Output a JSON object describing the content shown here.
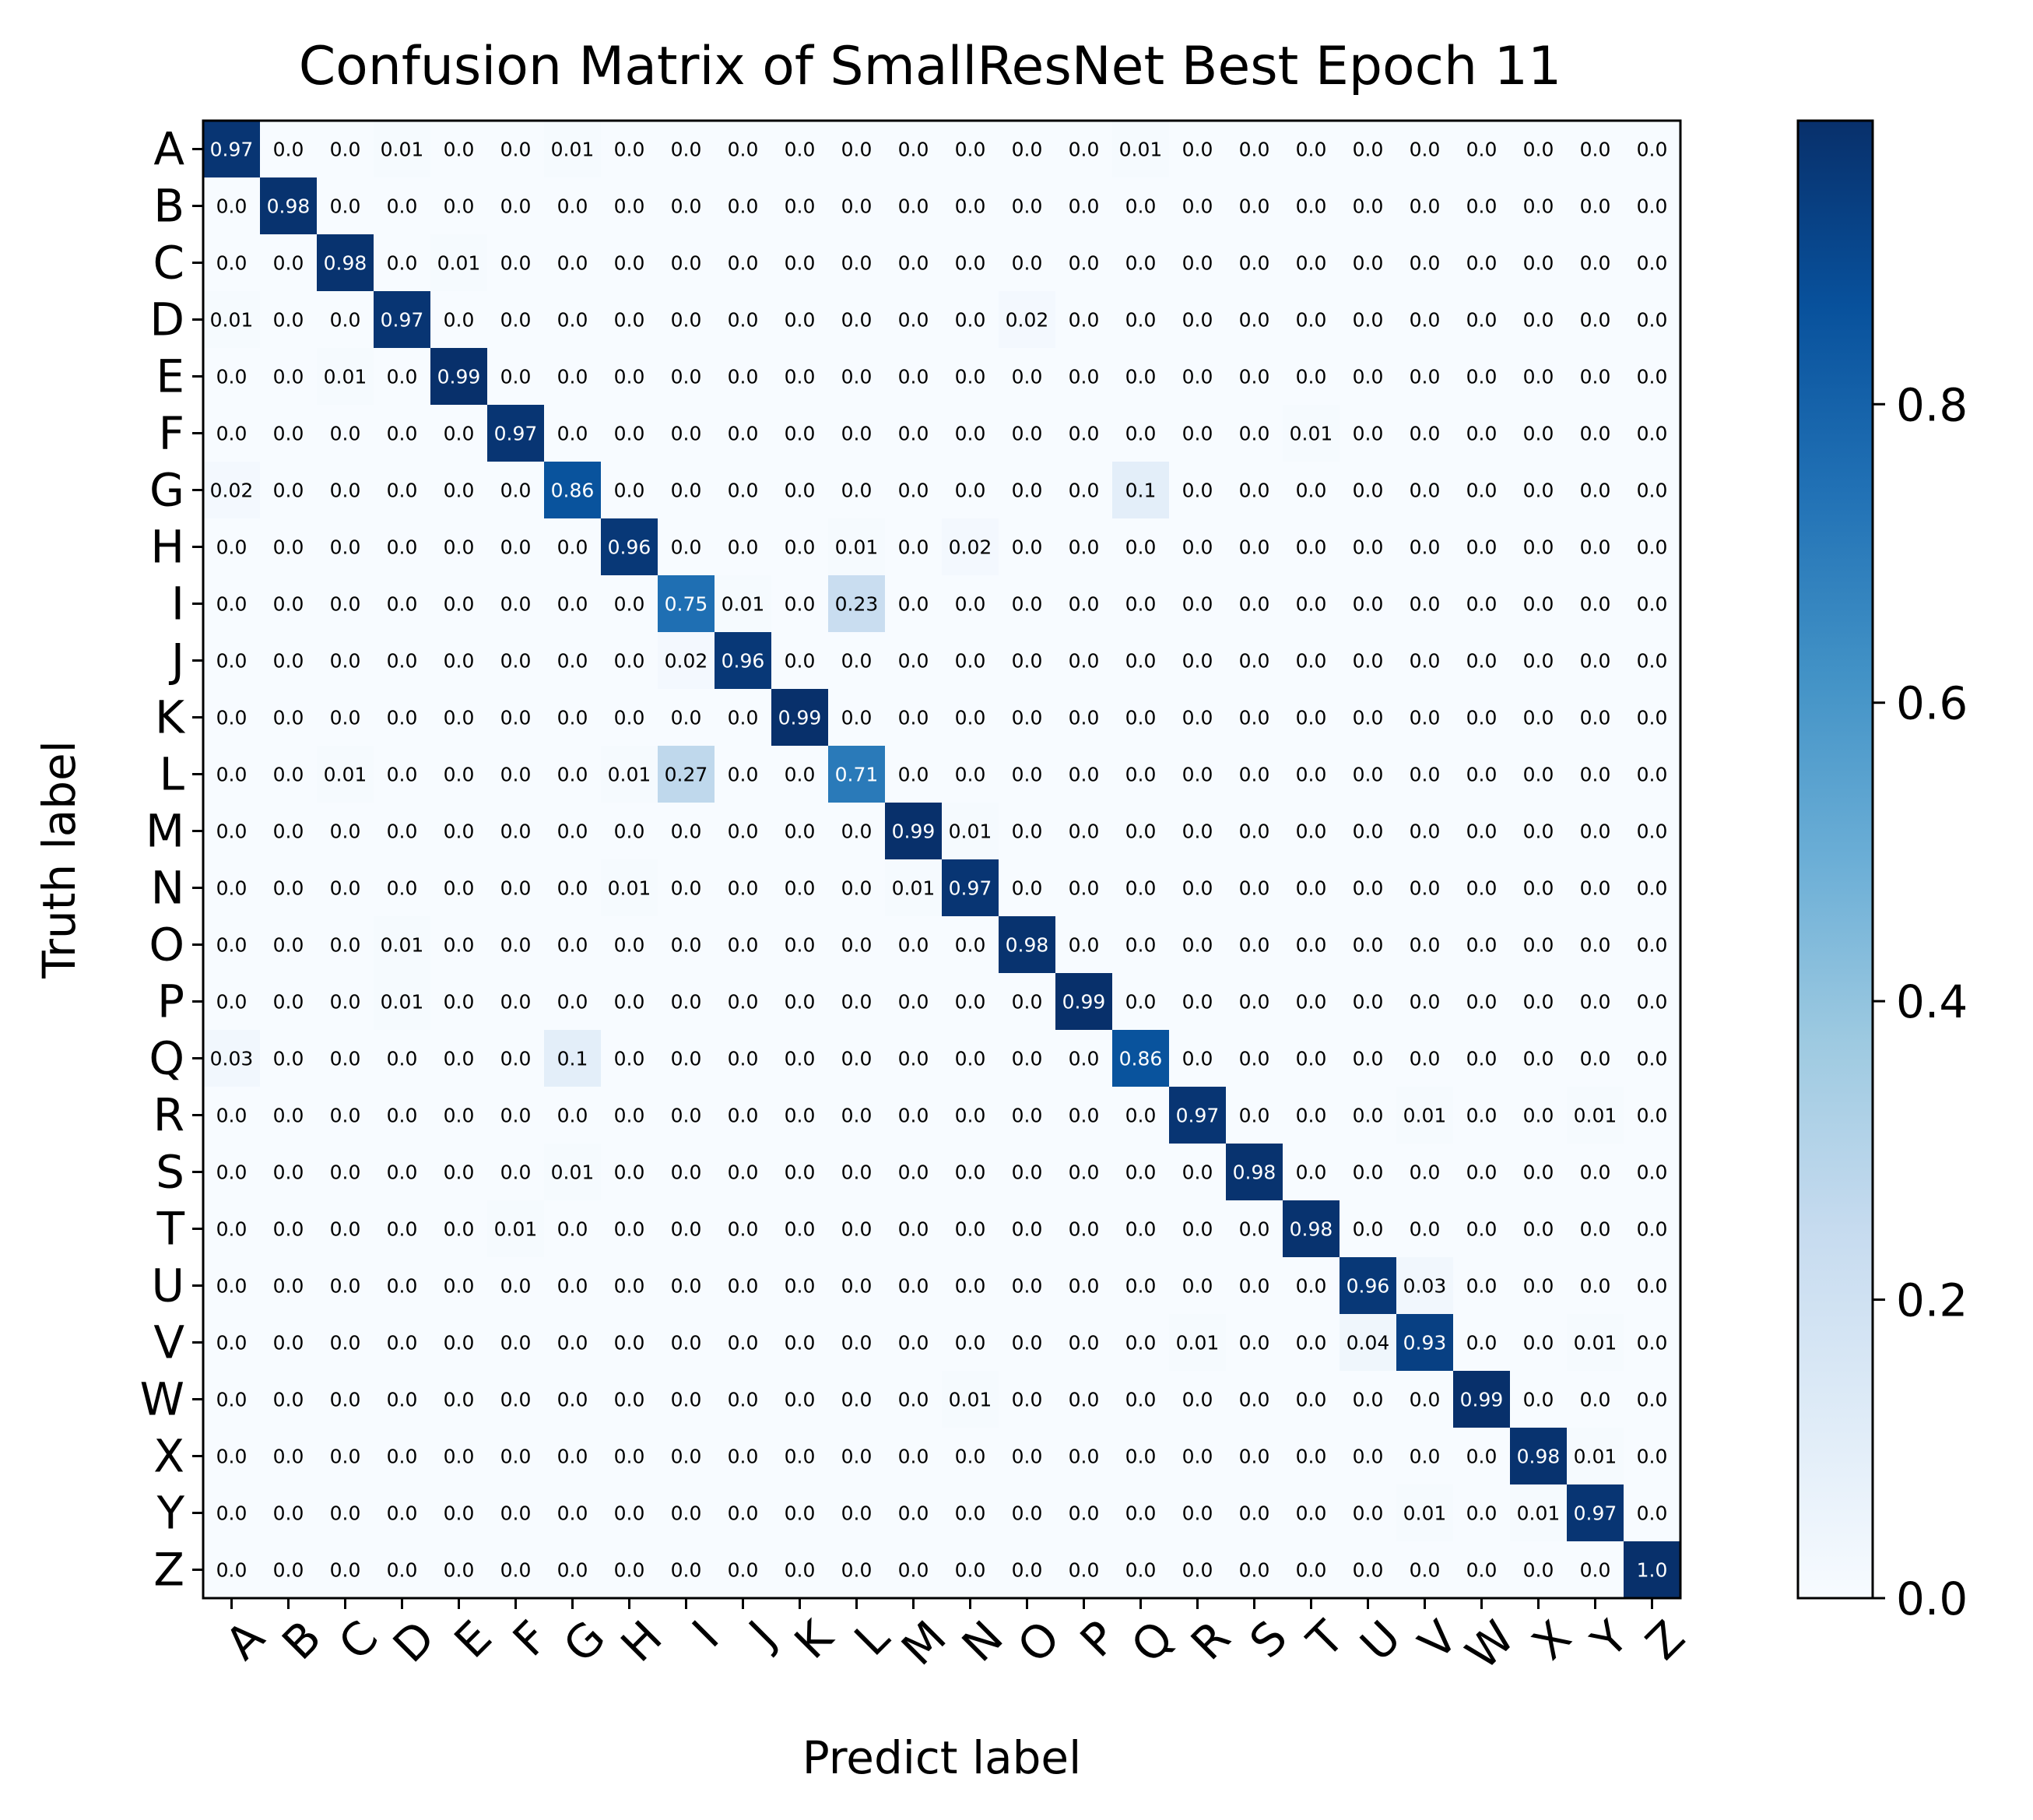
{
  "chart_data": {
    "type": "heatmap",
    "title": "Confusion Matrix of SmallResNet Best Epoch 11",
    "xlabel": "Predict label",
    "ylabel": "Truth label",
    "x_categories": [
      "A",
      "B",
      "C",
      "D",
      "E",
      "F",
      "G",
      "H",
      "I",
      "J",
      "K",
      "L",
      "M",
      "N",
      "O",
      "P",
      "Q",
      "R",
      "S",
      "T",
      "U",
      "V",
      "W",
      "X",
      "Y",
      "Z"
    ],
    "y_categories": [
      "A",
      "B",
      "C",
      "D",
      "E",
      "F",
      "G",
      "H",
      "I",
      "J",
      "K",
      "L",
      "M",
      "N",
      "O",
      "P",
      "Q",
      "R",
      "S",
      "T",
      "U",
      "V",
      "W",
      "X",
      "Y",
      "Z"
    ],
    "colormap": "Blues",
    "color_low": "#f7fbff",
    "color_high": "#08306b",
    "colorbar": {
      "range": [
        0.0,
        0.99
      ],
      "ticks": [
        0.0,
        0.2,
        0.4,
        0.6,
        0.8
      ],
      "tick_labels": [
        "0.0",
        "0.2",
        "0.4",
        "0.6",
        "0.8"
      ]
    },
    "values": [
      [
        0.97,
        0.0,
        0.0,
        0.01,
        0.0,
        0.0,
        0.01,
        0.0,
        0.0,
        0.0,
        0.0,
        0.0,
        0.0,
        0.0,
        0.0,
        0.0,
        0.01,
        0.0,
        0.0,
        0.0,
        0.0,
        0.0,
        0.0,
        0.0,
        0.0,
        0.0
      ],
      [
        0.0,
        0.98,
        0.0,
        0.0,
        0.0,
        0.0,
        0.0,
        0.0,
        0.0,
        0.0,
        0.0,
        0.0,
        0.0,
        0.0,
        0.0,
        0.0,
        0.0,
        0.0,
        0.0,
        0.0,
        0.0,
        0.0,
        0.0,
        0.0,
        0.0,
        0.0
      ],
      [
        0.0,
        0.0,
        0.98,
        0.0,
        0.01,
        0.0,
        0.0,
        0.0,
        0.0,
        0.0,
        0.0,
        0.0,
        0.0,
        0.0,
        0.0,
        0.0,
        0.0,
        0.0,
        0.0,
        0.0,
        0.0,
        0.0,
        0.0,
        0.0,
        0.0,
        0.0
      ],
      [
        0.01,
        0.0,
        0.0,
        0.97,
        0.0,
        0.0,
        0.0,
        0.0,
        0.0,
        0.0,
        0.0,
        0.0,
        0.0,
        0.0,
        0.02,
        0.0,
        0.0,
        0.0,
        0.0,
        0.0,
        0.0,
        0.0,
        0.0,
        0.0,
        0.0,
        0.0
      ],
      [
        0.0,
        0.0,
        0.01,
        0.0,
        0.99,
        0.0,
        0.0,
        0.0,
        0.0,
        0.0,
        0.0,
        0.0,
        0.0,
        0.0,
        0.0,
        0.0,
        0.0,
        0.0,
        0.0,
        0.0,
        0.0,
        0.0,
        0.0,
        0.0,
        0.0,
        0.0
      ],
      [
        0.0,
        0.0,
        0.0,
        0.0,
        0.0,
        0.97,
        0.0,
        0.0,
        0.0,
        0.0,
        0.0,
        0.0,
        0.0,
        0.0,
        0.0,
        0.0,
        0.0,
        0.0,
        0.0,
        0.01,
        0.0,
        0.0,
        0.0,
        0.0,
        0.0,
        0.0
      ],
      [
        0.02,
        0.0,
        0.0,
        0.0,
        0.0,
        0.0,
        0.86,
        0.0,
        0.0,
        0.0,
        0.0,
        0.0,
        0.0,
        0.0,
        0.0,
        0.0,
        0.1,
        0.0,
        0.0,
        0.0,
        0.0,
        0.0,
        0.0,
        0.0,
        0.0,
        0.0
      ],
      [
        0.0,
        0.0,
        0.0,
        0.0,
        0.0,
        0.0,
        0.0,
        0.96,
        0.0,
        0.0,
        0.0,
        0.01,
        0.0,
        0.02,
        0.0,
        0.0,
        0.0,
        0.0,
        0.0,
        0.0,
        0.0,
        0.0,
        0.0,
        0.0,
        0.0,
        0.0
      ],
      [
        0.0,
        0.0,
        0.0,
        0.0,
        0.0,
        0.0,
        0.0,
        0.0,
        0.75,
        0.01,
        0.0,
        0.23,
        0.0,
        0.0,
        0.0,
        0.0,
        0.0,
        0.0,
        0.0,
        0.0,
        0.0,
        0.0,
        0.0,
        0.0,
        0.0,
        0.0
      ],
      [
        0.0,
        0.0,
        0.0,
        0.0,
        0.0,
        0.0,
        0.0,
        0.0,
        0.02,
        0.96,
        0.0,
        0.0,
        0.0,
        0.0,
        0.0,
        0.0,
        0.0,
        0.0,
        0.0,
        0.0,
        0.0,
        0.0,
        0.0,
        0.0,
        0.0,
        0.0
      ],
      [
        0.0,
        0.0,
        0.0,
        0.0,
        0.0,
        0.0,
        0.0,
        0.0,
        0.0,
        0.0,
        0.99,
        0.0,
        0.0,
        0.0,
        0.0,
        0.0,
        0.0,
        0.0,
        0.0,
        0.0,
        0.0,
        0.0,
        0.0,
        0.0,
        0.0,
        0.0
      ],
      [
        0.0,
        0.0,
        0.01,
        0.0,
        0.0,
        0.0,
        0.0,
        0.01,
        0.27,
        0.0,
        0.0,
        0.71,
        0.0,
        0.0,
        0.0,
        0.0,
        0.0,
        0.0,
        0.0,
        0.0,
        0.0,
        0.0,
        0.0,
        0.0,
        0.0,
        0.0
      ],
      [
        0.0,
        0.0,
        0.0,
        0.0,
        0.0,
        0.0,
        0.0,
        0.0,
        0.0,
        0.0,
        0.0,
        0.0,
        0.99,
        0.01,
        0.0,
        0.0,
        0.0,
        0.0,
        0.0,
        0.0,
        0.0,
        0.0,
        0.0,
        0.0,
        0.0,
        0.0
      ],
      [
        0.0,
        0.0,
        0.0,
        0.0,
        0.0,
        0.0,
        0.0,
        0.01,
        0.0,
        0.0,
        0.0,
        0.0,
        0.01,
        0.97,
        0.0,
        0.0,
        0.0,
        0.0,
        0.0,
        0.0,
        0.0,
        0.0,
        0.0,
        0.0,
        0.0,
        0.0
      ],
      [
        0.0,
        0.0,
        0.0,
        0.01,
        0.0,
        0.0,
        0.0,
        0.0,
        0.0,
        0.0,
        0.0,
        0.0,
        0.0,
        0.0,
        0.98,
        0.0,
        0.0,
        0.0,
        0.0,
        0.0,
        0.0,
        0.0,
        0.0,
        0.0,
        0.0,
        0.0
      ],
      [
        0.0,
        0.0,
        0.0,
        0.01,
        0.0,
        0.0,
        0.0,
        0.0,
        0.0,
        0.0,
        0.0,
        0.0,
        0.0,
        0.0,
        0.0,
        0.99,
        0.0,
        0.0,
        0.0,
        0.0,
        0.0,
        0.0,
        0.0,
        0.0,
        0.0,
        0.0
      ],
      [
        0.03,
        0.0,
        0.0,
        0.0,
        0.0,
        0.0,
        0.1,
        0.0,
        0.0,
        0.0,
        0.0,
        0.0,
        0.0,
        0.0,
        0.0,
        0.0,
        0.86,
        0.0,
        0.0,
        0.0,
        0.0,
        0.0,
        0.0,
        0.0,
        0.0,
        0.0
      ],
      [
        0.0,
        0.0,
        0.0,
        0.0,
        0.0,
        0.0,
        0.0,
        0.0,
        0.0,
        0.0,
        0.0,
        0.0,
        0.0,
        0.0,
        0.0,
        0.0,
        0.0,
        0.97,
        0.0,
        0.0,
        0.0,
        0.01,
        0.0,
        0.0,
        0.01,
        0.0
      ],
      [
        0.0,
        0.0,
        0.0,
        0.0,
        0.0,
        0.0,
        0.01,
        0.0,
        0.0,
        0.0,
        0.0,
        0.0,
        0.0,
        0.0,
        0.0,
        0.0,
        0.0,
        0.0,
        0.98,
        0.0,
        0.0,
        0.0,
        0.0,
        0.0,
        0.0,
        0.0
      ],
      [
        0.0,
        0.0,
        0.0,
        0.0,
        0.0,
        0.01,
        0.0,
        0.0,
        0.0,
        0.0,
        0.0,
        0.0,
        0.0,
        0.0,
        0.0,
        0.0,
        0.0,
        0.0,
        0.0,
        0.98,
        0.0,
        0.0,
        0.0,
        0.0,
        0.0,
        0.0
      ],
      [
        0.0,
        0.0,
        0.0,
        0.0,
        0.0,
        0.0,
        0.0,
        0.0,
        0.0,
        0.0,
        0.0,
        0.0,
        0.0,
        0.0,
        0.0,
        0.0,
        0.0,
        0.0,
        0.0,
        0.0,
        0.96,
        0.03,
        0.0,
        0.0,
        0.0,
        0.0
      ],
      [
        0.0,
        0.0,
        0.0,
        0.0,
        0.0,
        0.0,
        0.0,
        0.0,
        0.0,
        0.0,
        0.0,
        0.0,
        0.0,
        0.0,
        0.0,
        0.0,
        0.0,
        0.01,
        0.0,
        0.0,
        0.04,
        0.93,
        0.0,
        0.0,
        0.01,
        0.0
      ],
      [
        0.0,
        0.0,
        0.0,
        0.0,
        0.0,
        0.0,
        0.0,
        0.0,
        0.0,
        0.0,
        0.0,
        0.0,
        0.0,
        0.01,
        0.0,
        0.0,
        0.0,
        0.0,
        0.0,
        0.0,
        0.0,
        0.0,
        0.99,
        0.0,
        0.0,
        0.0
      ],
      [
        0.0,
        0.0,
        0.0,
        0.0,
        0.0,
        0.0,
        0.0,
        0.0,
        0.0,
        0.0,
        0.0,
        0.0,
        0.0,
        0.0,
        0.0,
        0.0,
        0.0,
        0.0,
        0.0,
        0.0,
        0.0,
        0.0,
        0.0,
        0.98,
        0.01,
        0.0
      ],
      [
        0.0,
        0.0,
        0.0,
        0.0,
        0.0,
        0.0,
        0.0,
        0.0,
        0.0,
        0.0,
        0.0,
        0.0,
        0.0,
        0.0,
        0.0,
        0.0,
        0.0,
        0.0,
        0.0,
        0.0,
        0.0,
        0.01,
        0.0,
        0.01,
        0.97,
        0.0
      ],
      [
        0.0,
        0.0,
        0.0,
        0.0,
        0.0,
        0.0,
        0.0,
        0.0,
        0.0,
        0.0,
        0.0,
        0.0,
        0.0,
        0.0,
        0.0,
        0.0,
        0.0,
        0.0,
        0.0,
        0.0,
        0.0,
        0.0,
        0.0,
        0.0,
        0.0,
        1.0
      ]
    ]
  }
}
